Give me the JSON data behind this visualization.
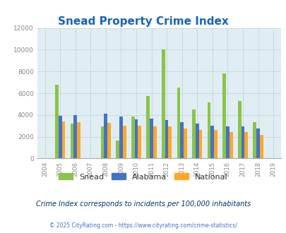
{
  "title": "Snead Property Crime Index",
  "title_color": "#1565C0",
  "years": [
    2004,
    2005,
    2006,
    2007,
    2008,
    2009,
    2010,
    2011,
    2012,
    2013,
    2014,
    2015,
    2016,
    2017,
    2018,
    2019
  ],
  "snead": [
    0,
    6800,
    3200,
    0,
    2950,
    1650,
    3850,
    5750,
    10050,
    6500,
    4500,
    5150,
    7800,
    5300,
    3350,
    0
  ],
  "alabama": [
    0,
    3900,
    4000,
    0,
    4100,
    3850,
    3600,
    3650,
    3500,
    3350,
    3200,
    3000,
    2950,
    2950,
    2750,
    0
  ],
  "national": [
    0,
    3400,
    3350,
    0,
    3300,
    3000,
    3000,
    2950,
    2950,
    2750,
    2600,
    2600,
    2450,
    2400,
    2150,
    0
  ],
  "snead_color": "#8BC34A",
  "alabama_color": "#4472C4",
  "national_color": "#FFA726",
  "bg_color": "#E0EEF4",
  "ylim": [
    0,
    12000
  ],
  "yticks": [
    0,
    2000,
    4000,
    6000,
    8000,
    10000,
    12000
  ],
  "grid_color": "#C8D8DC",
  "subtitle": "Crime Index corresponds to incidents per 100,000 inhabitants",
  "subtitle_color": "#003366",
  "footer": "© 2025 CityRating.com - https://www.cityrating.com/crime-statistics/",
  "footer_color": "#4472C4",
  "legend_labels": [
    "Snead",
    "Alabama",
    "National"
  ],
  "bar_width": 0.22
}
